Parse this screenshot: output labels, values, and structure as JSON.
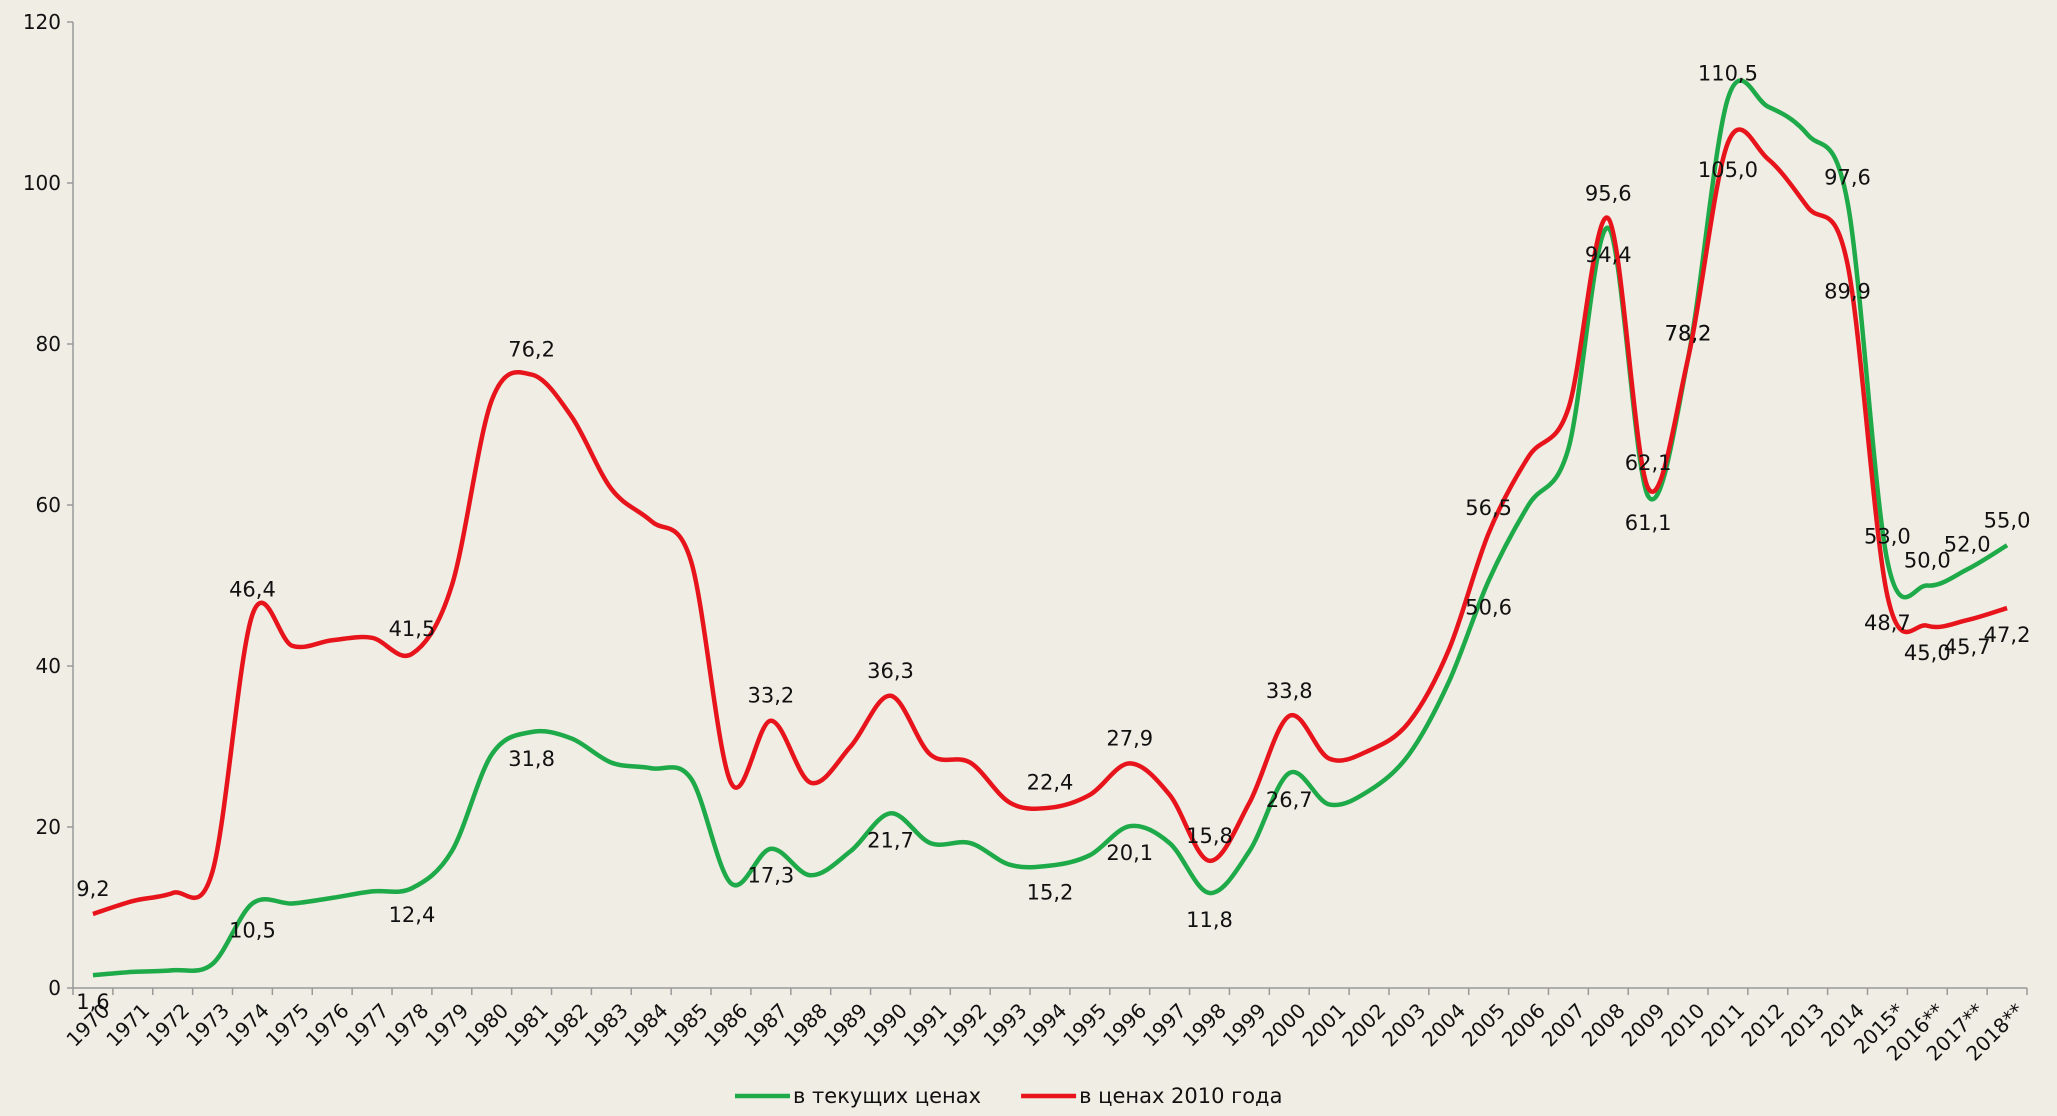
{
  "chart_data": {
    "type": "line",
    "categories": [
      "1970",
      "1971",
      "1972",
      "1973",
      "1974",
      "1975",
      "1976",
      "1977",
      "1978",
      "1979",
      "1980",
      "1981",
      "1982",
      "1983",
      "1984",
      "1985",
      "1986",
      "1987",
      "1988",
      "1989",
      "1990",
      "1991",
      "1992",
      "1993",
      "1994",
      "1995",
      "1996",
      "1997",
      "1998",
      "1999",
      "2000",
      "2001",
      "2002",
      "2003",
      "2004",
      "2005",
      "2006",
      "2007",
      "2008",
      "2009",
      "2010",
      "2011",
      "2012",
      "2013",
      "2014",
      "2015*",
      "2016**",
      "2017**",
      "2018**"
    ],
    "series": [
      {
        "name": "в текущих ценах",
        "color": "#1eaa48",
        "values": [
          1.6,
          2.0,
          2.2,
          3.0,
          10.5,
          10.5,
          11.2,
          12.0,
          12.4,
          17.0,
          29.0,
          31.8,
          31.0,
          28.0,
          27.3,
          26.0,
          13.0,
          17.3,
          14.0,
          17.0,
          21.7,
          18.0,
          18.0,
          15.3,
          15.2,
          16.5,
          20.1,
          18.0,
          11.8,
          17.0,
          26.7,
          22.8,
          24.5,
          29.0,
          38.0,
          50.6,
          60.0,
          67.0,
          94.4,
          61.1,
          78.2,
          110.5,
          109.5,
          106.0,
          97.6,
          53.0,
          50.0,
          52.0,
          55.0
        ],
        "value_labels": [
          "1,6",
          null,
          null,
          null,
          "10,5",
          null,
          null,
          null,
          "12,4",
          null,
          null,
          "31,8",
          null,
          null,
          null,
          null,
          null,
          "17,3",
          null,
          null,
          "21,7",
          null,
          null,
          null,
          "15,2",
          null,
          "20,1",
          null,
          "11,8",
          null,
          "26,7",
          null,
          null,
          null,
          null,
          "50,6",
          null,
          null,
          "94,4",
          "61,1",
          "78,2",
          "110,5",
          null,
          null,
          "97,6",
          "53,0",
          "50,0",
          "52,0",
          "55,0"
        ]
      },
      {
        "name": "в ценах 2010 года",
        "color": "#e8141c",
        "values": [
          9.2,
          10.8,
          11.8,
          14.5,
          46.4,
          42.5,
          43.2,
          43.5,
          41.5,
          50.0,
          73.0,
          76.2,
          71.0,
          62.0,
          58.0,
          53.0,
          25.5,
          33.2,
          25.5,
          30.0,
          36.3,
          29.0,
          28.0,
          23.0,
          22.4,
          24.0,
          27.9,
          24.0,
          15.8,
          23.0,
          33.8,
          28.5,
          29.5,
          33.0,
          42.0,
          56.5,
          66.0,
          72.0,
          95.6,
          62.1,
          78.2,
          105.0,
          103.0,
          97.0,
          89.9,
          48.7,
          45.0,
          45.7,
          47.2
        ],
        "value_labels": [
          "9,2",
          null,
          null,
          null,
          "46,4",
          null,
          null,
          null,
          "41,5",
          null,
          null,
          "76,2",
          null,
          null,
          null,
          null,
          null,
          "33,2",
          null,
          null,
          "36,3",
          null,
          null,
          null,
          "22,4",
          null,
          "27,9",
          null,
          "15,8",
          null,
          "33,8",
          null,
          null,
          null,
          null,
          "56,5",
          null,
          null,
          "95,6",
          "62,1",
          "78,2",
          "105,0",
          null,
          null,
          "89,9",
          "48,7",
          "45,0",
          "45,7",
          "47,2"
        ]
      }
    ],
    "ylim": [
      0,
      120
    ],
    "yticks": [
      0,
      20,
      40,
      60,
      80,
      100,
      120
    ],
    "grid": false,
    "legend": "bottom"
  }
}
